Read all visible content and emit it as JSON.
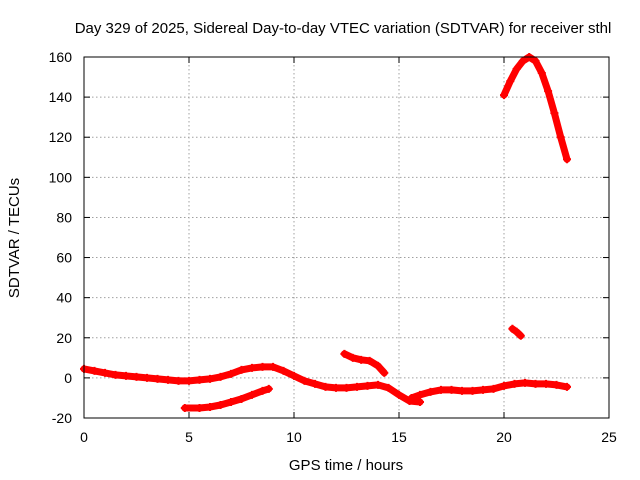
{
  "chart_data": {
    "type": "scatter",
    "title": "Day 329 of 2025, Sidereal Day-to-day VTEC variation (SDTVAR) for receiver sthl",
    "xlabel": "GPS time / hours",
    "ylabel": "SDTVAR / TECUs",
    "xlim": [
      0,
      25
    ],
    "ylim": [
      -20,
      160
    ],
    "xticks": [
      0,
      5,
      10,
      15,
      20,
      25
    ],
    "yticks": [
      -20,
      0,
      20,
      40,
      60,
      80,
      100,
      120,
      140,
      160
    ],
    "grid": true,
    "marker": "+",
    "color": "#ff0000",
    "series": [
      {
        "name": "arc-main",
        "x": [
          0,
          0.5,
          1,
          1.5,
          2,
          2.5,
          3,
          3.5,
          4,
          4.5,
          5,
          5.5,
          6,
          6.5,
          7,
          7.5,
          8,
          8.5,
          9,
          9.5,
          10,
          10.5,
          11,
          11.5,
          12,
          12.5,
          13,
          13.5,
          14,
          14.5,
          15,
          15.5,
          16
        ],
        "y": [
          4.5,
          3.5,
          2.5,
          1.5,
          1,
          0.5,
          0,
          -0.5,
          -1,
          -1.5,
          -1.5,
          -1,
          -0.5,
          0.5,
          2,
          4,
          5,
          5.5,
          5.5,
          3.5,
          1,
          -1.5,
          -3,
          -4.5,
          -5,
          -5,
          -4.5,
          -4,
          -3.5,
          -5,
          -8.5,
          -11.5,
          -12
        ]
      },
      {
        "name": "arc-low",
        "x": [
          4.8,
          5.5,
          6,
          6.5,
          7,
          7.5,
          8,
          8.5,
          8.8
        ],
        "y": [
          -15,
          -15,
          -14.5,
          -13.5,
          -12,
          -10.5,
          -8.5,
          -6.5,
          -5.5
        ]
      },
      {
        "name": "arc-mid",
        "x": [
          12.4,
          12.8,
          13.2,
          13.6,
          14,
          14.3
        ],
        "y": [
          12,
          10,
          9,
          8.5,
          6,
          2.5
        ]
      },
      {
        "name": "arc-evening",
        "x": [
          15.6,
          16,
          16.5,
          17,
          17.5,
          18,
          18.5,
          19,
          19.5,
          20,
          20.5,
          21,
          21.5,
          22,
          22.5,
          23
        ],
        "y": [
          -10,
          -8.5,
          -7,
          -6,
          -6,
          -6.5,
          -6.5,
          -6,
          -5.5,
          -4,
          -3,
          -2.5,
          -3,
          -3,
          -3.5,
          -4.5
        ]
      },
      {
        "name": "arc-short",
        "x": [
          20.4,
          20.6,
          20.8
        ],
        "y": [
          24.5,
          23,
          21
        ]
      },
      {
        "name": "arc-high",
        "x": [
          20,
          20.3,
          20.6,
          20.9,
          21.2,
          21.5,
          21.8,
          22.1,
          22.4,
          22.7,
          23
        ],
        "y": [
          141,
          148,
          154,
          158,
          160,
          158,
          152,
          143,
          132,
          120,
          109
        ]
      }
    ]
  }
}
